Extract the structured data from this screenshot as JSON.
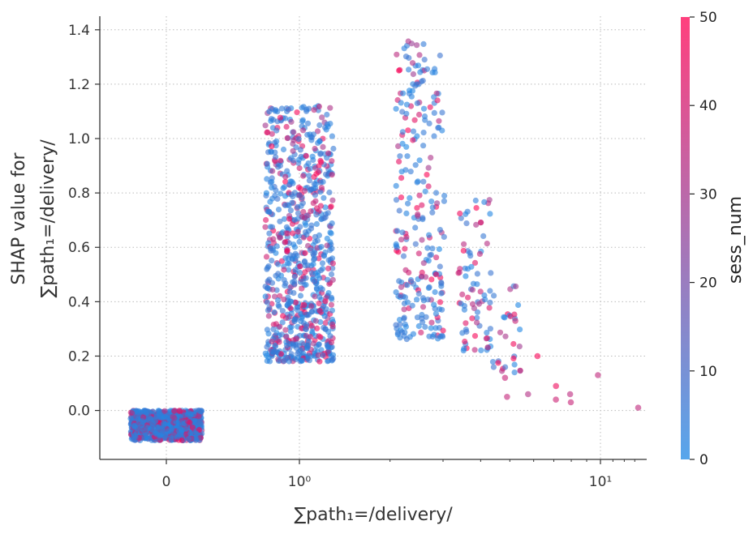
{
  "chart_data": {
    "type": "scatter",
    "title": "",
    "xlabel": "∑path₁=/delivery/",
    "ylabel_line1": "SHAP value for",
    "ylabel_line2": "∑path₁=/delivery/",
    "x_scale": "symlog",
    "x_tick_labels": [
      "0",
      "10⁰",
      "10¹"
    ],
    "x_ticks": [
      0,
      1,
      10
    ],
    "y_ticks": [
      0.0,
      0.2,
      0.4,
      0.6,
      0.8,
      1.0,
      1.2,
      1.4
    ],
    "y_tick_labels": [
      "0.0",
      "0.2",
      "0.4",
      "0.6",
      "0.8",
      "1.0",
      "1.2",
      "1.4"
    ],
    "ylim": [
      -0.18,
      1.45
    ],
    "grid": true,
    "colorbar": {
      "label": "sess_num",
      "range": [
        0,
        50
      ],
      "ticks": [
        0,
        10,
        20,
        30,
        40,
        50
      ],
      "tick_labels": [
        "0",
        "10",
        "20",
        "30",
        "40",
        "50"
      ],
      "color_low": "#1e88e5",
      "color_high": "#ff0052"
    },
    "clusters": [
      {
        "x": 0,
        "y_range": [
          -0.11,
          0.0
        ],
        "n": 900,
        "color_mix": 0.25
      },
      {
        "x": 1,
        "y_range": [
          0.18,
          1.12
        ],
        "n": 800,
        "color_mix": 0.3
      },
      {
        "x": 2,
        "y_range": [
          0.26,
          1.36
        ],
        "n": 250,
        "color_mix": 0.3
      },
      {
        "x": 3,
        "y_range": [
          0.22,
          0.78
        ],
        "n": 80,
        "color_mix": 0.4
      },
      {
        "x": 4,
        "y_range": [
          0.14,
          0.48
        ],
        "n": 30,
        "color_mix": 0.5
      }
    ],
    "points_outliers": [
      {
        "x": 5,
        "y": 0.33
      },
      {
        "x": 5,
        "y": 0.05
      },
      {
        "x": 5,
        "y": 0.12
      },
      {
        "x": 6,
        "y": 0.2
      },
      {
        "x": 6,
        "y": 0.06
      },
      {
        "x": 7,
        "y": 0.04
      },
      {
        "x": 7,
        "y": 0.09
      },
      {
        "x": 8,
        "y": 0.06
      },
      {
        "x": 8,
        "y": 0.03
      },
      {
        "x": 10,
        "y": 0.13
      },
      {
        "x": 13,
        "y": 0.01
      }
    ]
  }
}
